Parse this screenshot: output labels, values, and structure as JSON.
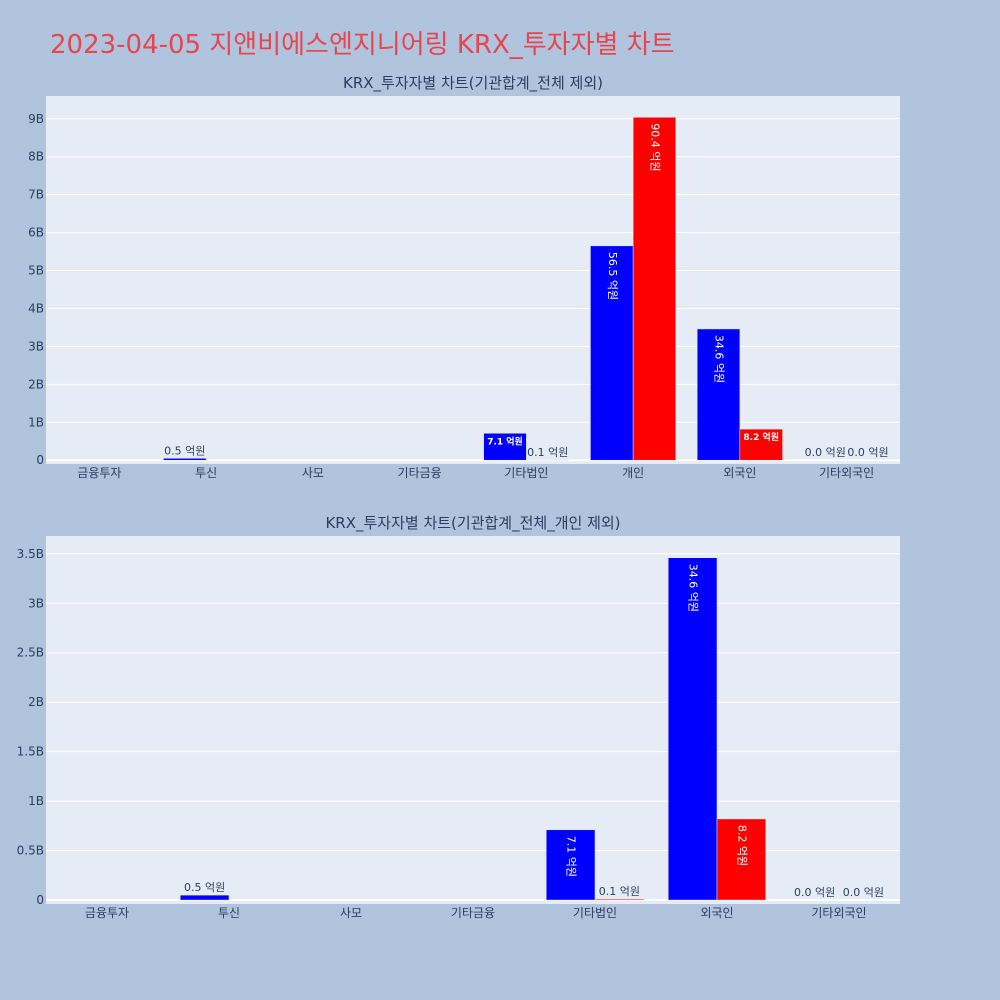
{
  "page": {
    "title": "2023-04-05 지앤비에스엔지니어링 KRX_투자자별 차트"
  },
  "colors": {
    "background": "#b0c4de",
    "plot_background": "#e5ecf6",
    "grid": "#ffffff",
    "buy": "#0000ff",
    "sell": "#ff0000",
    "title": "#e8464f",
    "text": "#2a3f5f"
  },
  "chart_data": [
    {
      "type": "bar",
      "title": "KRX_투자자별 차트(기관합계_전체 제외)",
      "categories": [
        "금융투자",
        "투신",
        "사모",
        "기타금융",
        "기타법인",
        "개인",
        "외국인",
        "기타외국인"
      ],
      "series": [
        {
          "color": "#0000ff",
          "values": [
            0,
            0.05,
            0,
            0,
            0.71,
            5.65,
            3.46,
            0.0
          ],
          "labels": [
            "",
            "0.5 억원",
            "",
            "",
            "7.1 억원",
            "56.5 억원",
            "34.6 억원",
            "0.0 억원"
          ]
        },
        {
          "color": "#ff0000",
          "values": [
            0,
            0,
            0,
            0,
            0.01,
            9.04,
            0.82,
            0.0
          ],
          "labels": [
            "",
            "",
            "",
            "",
            "0.1 억원",
            "90.4 억원",
            "8.2 억원",
            "0.0 억원"
          ]
        }
      ],
      "yticks": [
        0,
        1,
        2,
        3,
        4,
        5,
        6,
        7,
        8,
        9
      ],
      "ytick_labels": [
        "0",
        "1B",
        "2B",
        "3B",
        "4B",
        "5B",
        "6B",
        "7B",
        "8B",
        "9B"
      ],
      "ylim": [
        -0.1,
        9.6
      ],
      "grid": true
    },
    {
      "type": "bar",
      "title": "KRX_투자자별 차트(기관합계_전체_개인 제외)",
      "categories": [
        "금융투자",
        "투신",
        "사모",
        "기타금융",
        "기타법인",
        "외국인",
        "기타외국인"
      ],
      "series": [
        {
          "color": "#0000ff",
          "values": [
            0,
            0.05,
            0,
            0,
            0.71,
            3.46,
            0.0
          ],
          "labels": [
            "",
            "0.5 억원",
            "",
            "",
            "7.1 억원",
            "34.6 억원",
            "0.0 억원"
          ]
        },
        {
          "color": "#ff0000",
          "values": [
            0,
            0,
            0,
            0,
            0.01,
            0.82,
            0.0
          ],
          "labels": [
            "",
            "",
            "",
            "",
            "0.1 억원",
            "8.2 억원",
            "0.0 억원"
          ]
        }
      ],
      "yticks": [
        0,
        0.5,
        1,
        1.5,
        2,
        2.5,
        3,
        3.5
      ],
      "ytick_labels": [
        "0",
        "0.5B",
        "1B",
        "1.5B",
        "2B",
        "2.5B",
        "3B",
        "3.5B"
      ],
      "ylim": [
        -0.04,
        3.68
      ],
      "grid": true
    }
  ]
}
